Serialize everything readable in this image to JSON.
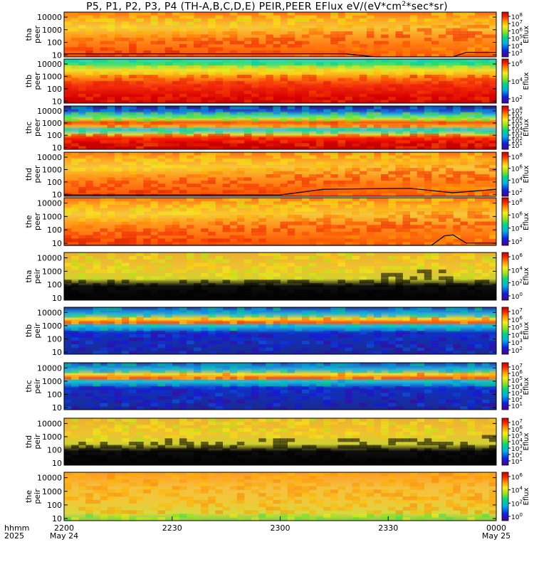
{
  "title": {
    "pre": "P5, P1, P2, P3, P4 (TH-A,B,C,D,E) PEIR,PEER EFlux eV/(eV*cm",
    "sup": "2",
    "post": "*sec*sr)"
  },
  "x_axis": {
    "row1_label": "hhmm",
    "row2_label": "2025",
    "ticks": [
      {
        "main": "2200",
        "sub": "May 24"
      },
      {
        "main": "2230",
        "sub": ""
      },
      {
        "main": "2300",
        "sub": ""
      },
      {
        "main": "2330",
        "sub": ""
      },
      {
        "main": "0000",
        "sub": "May 25"
      }
    ]
  },
  "colorbar_label": "Eflux",
  "y_ticks": [
    "10",
    "100",
    "1000",
    "10000"
  ],
  "chart_data": [
    {
      "type": "heatmap",
      "probe": "tha",
      "species": "peer",
      "ylabel": [
        "tha",
        "peer"
      ],
      "yscale": "log",
      "ylim": [
        7,
        25000
      ],
      "cbar_ticks": [
        "10^3",
        "10^4",
        "10^5",
        "10^6",
        "10^7",
        "10^8"
      ],
      "cmap_class": "orange",
      "has_line": true
    },
    {
      "type": "heatmap",
      "probe": "thb",
      "species": "peer",
      "ylabel": [
        "thb",
        "peer"
      ],
      "yscale": "log",
      "ylim": [
        7,
        25000
      ],
      "cbar_ticks": [
        "10^2",
        "10^4",
        "10^6"
      ],
      "cmap_class": "redcore",
      "has_line": false
    },
    {
      "type": "heatmap",
      "probe": "thc",
      "species": "peer",
      "ylabel": [
        "thc",
        "peer"
      ],
      "yscale": "log",
      "ylim": [
        7,
        25000
      ],
      "cbar_ticks": [
        "10^1",
        "10^2",
        "10^3",
        "10^4",
        "10^5",
        "10^6",
        "10^7",
        "10^8"
      ],
      "cmap_class": "bands",
      "has_line": false
    },
    {
      "type": "heatmap",
      "probe": "thd",
      "species": "peer",
      "ylabel": [
        "thd",
        "peer"
      ],
      "yscale": "log",
      "ylim": [
        7,
        25000
      ],
      "cbar_ticks": [
        "10^2",
        "10^4",
        "10^6",
        "10^8"
      ],
      "cmap_class": "orange",
      "has_line": true
    },
    {
      "type": "heatmap",
      "probe": "the",
      "species": "peer",
      "ylabel": [
        "the",
        "peer"
      ],
      "yscale": "log",
      "ylim": [
        7,
        25000
      ],
      "cbar_ticks": [
        "10^2",
        "10^4",
        "10^6",
        "10^8"
      ],
      "cmap_class": "orange",
      "has_line": true
    },
    {
      "type": "heatmap",
      "probe": "tha",
      "species": "peir",
      "ylabel": [
        "tha",
        "peir"
      ],
      "yscale": "log",
      "ylim": [
        7,
        25000
      ],
      "cbar_ticks": [
        "10^0",
        "10^2",
        "10^4",
        "10^6"
      ],
      "cmap_class": "yellowblack",
      "has_line": false
    },
    {
      "type": "heatmap",
      "probe": "thb",
      "species": "peir",
      "ylabel": [
        "thb",
        "peir"
      ],
      "yscale": "log",
      "ylim": [
        7,
        25000
      ],
      "cbar_ticks": [
        "10^2",
        "10^3",
        "10^4",
        "10^5",
        "10^6",
        "10^7"
      ],
      "cmap_class": "bluenoise",
      "has_line": false
    },
    {
      "type": "heatmap",
      "probe": "thc",
      "species": "peir",
      "ylabel": [
        "thc",
        "peir"
      ],
      "yscale": "log",
      "ylim": [
        7,
        25000
      ],
      "cbar_ticks": [
        "10^1",
        "10^2",
        "10^3",
        "10^4",
        "10^5",
        "10^6",
        "10^7"
      ],
      "cmap_class": "bluenoise",
      "has_line": false
    },
    {
      "type": "heatmap",
      "probe": "thd",
      "species": "peir",
      "ylabel": [
        "thd",
        "peir"
      ],
      "yscale": "log",
      "ylim": [
        7,
        25000
      ],
      "cbar_ticks": [
        "10^1",
        "10^2",
        "10^3",
        "10^4",
        "10^5",
        "10^6",
        "10^7"
      ],
      "cmap_class": "yellowblack",
      "has_line": false
    },
    {
      "type": "heatmap",
      "probe": "the",
      "species": "peir",
      "ylabel": [
        "the",
        "peir"
      ],
      "yscale": "log",
      "ylim": [
        7,
        25000
      ],
      "cbar_ticks": [
        "10^0",
        "10^2",
        "10^4",
        "10^6"
      ],
      "cmap_class": "orangebottom",
      "has_line": false
    }
  ]
}
